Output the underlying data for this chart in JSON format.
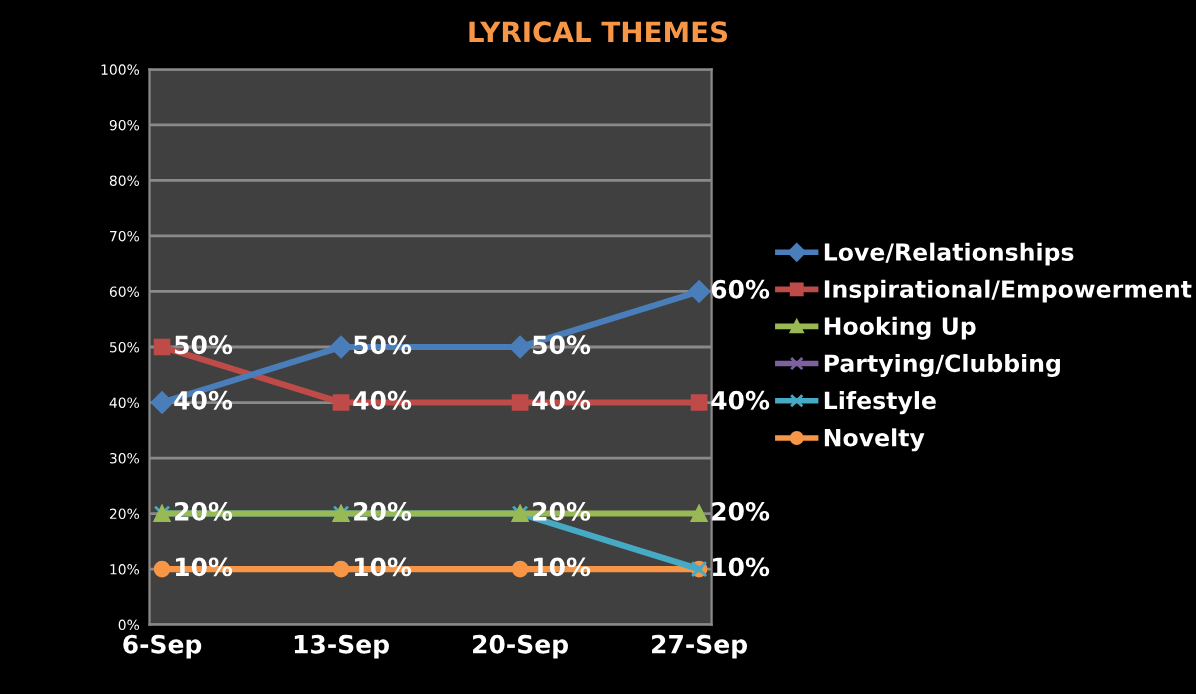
{
  "chart_data": {
    "type": "line",
    "title": "LYRICAL THEMES",
    "categories": [
      "6-Sep",
      "13-Sep",
      "20-Sep",
      "27-Sep"
    ],
    "series": [
      {
        "name": "Love/Relationships",
        "color": "#4a7ebb",
        "marker": "diamond",
        "values": [
          40,
          50,
          50,
          60
        ],
        "value_labels": [
          "40%",
          "50%",
          "50%",
          "60%"
        ]
      },
      {
        "name": "Inspirational/Empowerment",
        "color": "#be4b48",
        "marker": "square",
        "values": [
          50,
          40,
          40,
          40
        ],
        "value_labels": [
          "50%",
          "40%",
          "40%",
          "40%"
        ]
      },
      {
        "name": "Hooking Up",
        "color": "#98b954",
        "marker": "triangle",
        "values": [
          20,
          20,
          20,
          20
        ],
        "value_labels": [
          null,
          null,
          null,
          "20%"
        ]
      },
      {
        "name": "Partying/Clubbing",
        "color": "#7d60a0",
        "marker": "cross",
        "values": [
          null,
          null,
          null,
          null
        ]
      },
      {
        "name": "Lifestyle",
        "color": "#46aac5",
        "marker": "cross",
        "values": [
          20,
          20,
          20,
          10
        ],
        "value_labels": [
          "20%",
          "20%",
          "20%",
          null
        ]
      },
      {
        "name": "Novelty",
        "color": "#f79646",
        "marker": "circle",
        "values": [
          10,
          10,
          10,
          10
        ],
        "value_labels": [
          "10%",
          "10%",
          "10%",
          "10%"
        ]
      }
    ],
    "ylim": [
      0,
      100
    ],
    "yticks": [
      {
        "value": 0,
        "label": "0%"
      },
      {
        "value": 10,
        "label": "10%"
      },
      {
        "value": 20,
        "label": "20%"
      },
      {
        "value": 30,
        "label": "30%"
      },
      {
        "value": 40,
        "label": "40%"
      },
      {
        "value": 50,
        "label": "50%"
      },
      {
        "value": 60,
        "label": "60%"
      },
      {
        "value": 70,
        "label": "70%"
      },
      {
        "value": 80,
        "label": "80%"
      },
      {
        "value": 90,
        "label": "90%"
      },
      {
        "value": 100,
        "label": "100%"
      }
    ],
    "grid": "y",
    "legend": "right",
    "line_style": "solid"
  }
}
